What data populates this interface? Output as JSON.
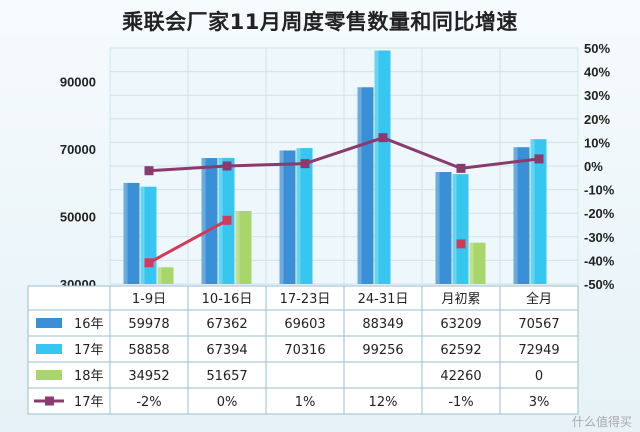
{
  "chart_data": {
    "type": "bar",
    "title": "乘联会厂家11月周度零售数量和同比增速",
    "categories": [
      "1-9日",
      "10-16日",
      "17-23日",
      "24-31日",
      "月初累",
      "全月"
    ],
    "ylim": [
      30000,
      100000
    ],
    "yticks": [
      "30000",
      "50000",
      "70000",
      "90000"
    ],
    "y2lim": [
      -0.5,
      0.5
    ],
    "y2ticks": [
      "50%",
      "40%",
      "30%",
      "20%",
      "10%",
      "0%",
      "-10%",
      "-20%",
      "-30%",
      "-40%",
      "-50%"
    ],
    "grid": true,
    "legend": "table-below",
    "series": [
      {
        "name": "16年",
        "type": "bar",
        "color": "#3b8fd6",
        "values": [
          59978,
          67362,
          69603,
          88349,
          63209,
          70567
        ],
        "labels": [
          "59978",
          "67362",
          "69603",
          "88349",
          "63209",
          "70567"
        ]
      },
      {
        "name": "17年",
        "type": "bar",
        "color": "#36c6f0",
        "values": [
          58858,
          67394,
          70316,
          99256,
          62592,
          72949
        ],
        "labels": [
          "58858",
          "67394",
          "70316",
          "99256",
          "62592",
          "72949"
        ]
      },
      {
        "name": "18年",
        "type": "bar",
        "color": "#a8d66a",
        "values": [
          34952,
          51657,
          null,
          null,
          42260,
          0
        ],
        "labels": [
          "34952",
          "51657",
          "",
          "",
          "42260",
          "0"
        ]
      },
      {
        "name": "17年",
        "type": "line",
        "axis": "right",
        "color": "#8a3b6e",
        "values": [
          -0.02,
          0.0,
          0.01,
          0.12,
          -0.01,
          0.03
        ],
        "labels": [
          "-2%",
          "0%",
          "1%",
          "12%",
          "-1%",
          "3%"
        ]
      },
      {
        "name": "",
        "type": "line",
        "axis": "right",
        "color": "#d23a5a",
        "values": [
          -0.41,
          -0.23,
          null,
          null,
          -0.33,
          null
        ]
      }
    ]
  },
  "watermark": "什么值得买"
}
